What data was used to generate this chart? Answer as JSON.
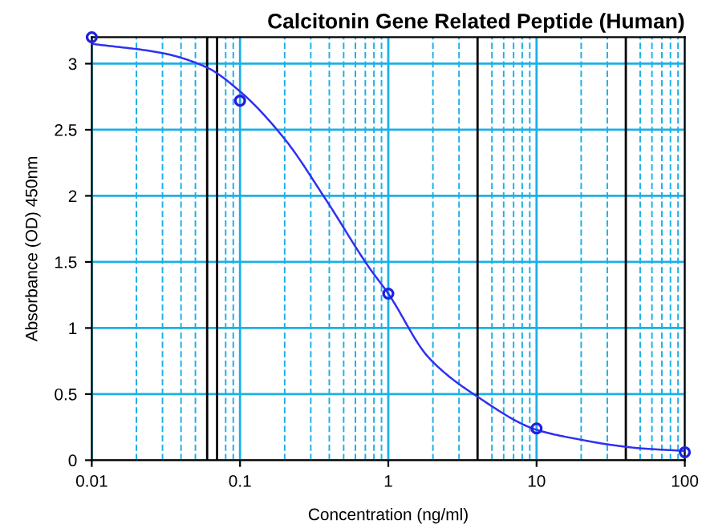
{
  "chart_data": {
    "type": "line",
    "title": "Calcitonin Gene Related Peptide (Human)",
    "xlabel": "Concentration (ng/ml)",
    "ylabel": "Absorbance (OD) 450nm",
    "series": [
      {
        "type": "scatter",
        "color": "#2020e0",
        "marker": "circle",
        "x": [
          0.01,
          0.1,
          1,
          10,
          100
        ],
        "values": [
          3.2,
          2.72,
          1.26,
          0.24,
          0.06
        ]
      },
      {
        "color": "#3030f0",
        "marker": "none",
        "x": [
          0.01,
          0.03,
          0.06,
          0.1,
          0.2,
          0.38,
          0.74,
          1,
          1.86,
          4,
          10,
          21,
          30,
          50,
          100
        ],
        "values": [
          3.15,
          3.08,
          2.97,
          2.79,
          2.43,
          1.97,
          1.46,
          1.26,
          0.78,
          0.48,
          0.23,
          0.15,
          0.12,
          0.09,
          0.07
        ]
      }
    ],
    "log": "x",
    "xlim": [
      0.01,
      100
    ],
    "xticks": [
      0.01,
      {
        "value": 0.02,
        "label": null
      },
      {
        "value": 0.03,
        "label": null
      },
      {
        "value": 0.04,
        "label": null
      },
      {
        "value": 0.05,
        "label": null
      },
      {
        "value": 0.08,
        "label": null
      },
      {
        "value": 0.09,
        "label": null
      },
      0.1,
      {
        "value": 0.2,
        "label": null
      },
      {
        "value": 0.3,
        "label": null
      },
      {
        "value": 0.4,
        "label": null
      },
      {
        "value": 0.5,
        "label": null
      },
      {
        "value": 0.6,
        "label": null
      },
      {
        "value": 0.7,
        "label": null
      },
      {
        "value": 0.8,
        "label": null
      },
      {
        "value": 0.9,
        "label": null
      },
      1,
      {
        "value": 2,
        "label": null
      },
      {
        "value": 3,
        "label": null
      },
      {
        "value": 5,
        "label": null
      },
      {
        "value": 6,
        "label": null
      },
      {
        "value": 7,
        "label": null
      },
      {
        "value": 8,
        "label": null
      },
      {
        "value": 9,
        "label": null
      },
      10,
      {
        "value": 20,
        "label": null
      },
      {
        "value": 30,
        "label": null
      },
      {
        "value": 50,
        "label": null
      },
      {
        "value": 60,
        "label": null
      },
      {
        "value": 70,
        "label": null
      },
      {
        "value": 80,
        "label": null
      },
      {
        "value": 90,
        "label": null
      },
      100
    ],
    "ylim": [
      0,
      3.2
    ],
    "yticks": [
      0,
      0.5,
      1,
      1.5,
      2,
      2.5,
      3
    ],
    "grid": true,
    "ref_lines": [
      {
        "axis": "x",
        "value": 0.06,
        "color": "#000000"
      },
      {
        "axis": "x",
        "value": 0.07,
        "color": "#000000"
      },
      {
        "axis": "x",
        "value": 4,
        "color": "#000000"
      },
      {
        "axis": "x",
        "value": 40,
        "color": "#000000"
      }
    ]
  }
}
